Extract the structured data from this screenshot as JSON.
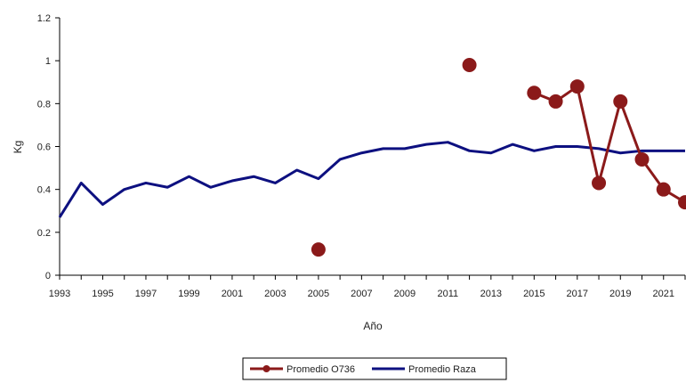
{
  "chart_data": {
    "type": "line",
    "title": "",
    "xlabel": "Año",
    "ylabel": "Kg",
    "ylim": [
      0,
      1.2
    ],
    "xlim": [
      1993,
      2022
    ],
    "yticks": [
      "0",
      "0.2",
      "0.4",
      "0.6",
      "0.8",
      "1",
      "1.2"
    ],
    "xticks": [
      "1993",
      "1995",
      "1997",
      "1999",
      "2001",
      "2003",
      "2005",
      "2007",
      "2009",
      "2011",
      "2013",
      "2015",
      "2017",
      "2019",
      "2021"
    ],
    "grid": false,
    "legend": "bottom",
    "series": [
      {
        "name": "Promedio O736",
        "color": "#8b1a1a",
        "x": [
          2005,
          2012,
          2015,
          2016,
          2017,
          2018,
          2019,
          2020,
          2021,
          2022
        ],
        "values": [
          0.12,
          0.98,
          0.85,
          0.81,
          0.88,
          0.43,
          0.81,
          0.54,
          0.4,
          0.34
        ],
        "connected_from": 2015
      },
      {
        "name": "Promedio Raza",
        "color": "#0d1080",
        "x": [
          1993,
          1994,
          1995,
          1996,
          1997,
          1998,
          1999,
          2000,
          2001,
          2002,
          2003,
          2004,
          2005,
          2006,
          2007,
          2008,
          2009,
          2010,
          2011,
          2012,
          2013,
          2014,
          2015,
          2016,
          2017,
          2018,
          2019,
          2020,
          2021,
          2022
        ],
        "values": [
          0.27,
          0.43,
          0.33,
          0.4,
          0.43,
          0.41,
          0.46,
          0.41,
          0.44,
          0.46,
          0.43,
          0.49,
          0.45,
          0.54,
          0.57,
          0.59,
          0.59,
          0.61,
          0.62,
          0.58,
          0.57,
          0.61,
          0.58,
          0.6,
          0.6,
          0.59,
          0.57,
          0.58,
          0.58,
          0.58
        ]
      }
    ]
  }
}
